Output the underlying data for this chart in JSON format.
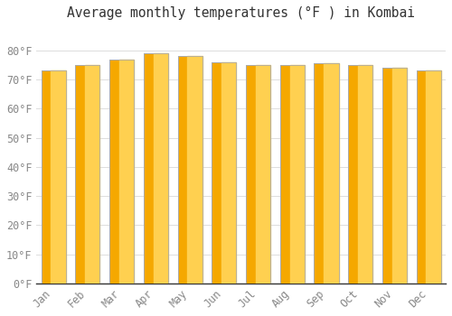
{
  "title": "Average monthly temperatures (°F ) in Kombai",
  "months": [
    "Jan",
    "Feb",
    "Mar",
    "Apr",
    "May",
    "Jun",
    "Jul",
    "Aug",
    "Sep",
    "Oct",
    "Nov",
    "Dec"
  ],
  "values": [
    73,
    75,
    77,
    79,
    78,
    76,
    75,
    75,
    75.5,
    75,
    74,
    73
  ],
  "ylim": [
    0,
    88
  ],
  "yticks": [
    0,
    10,
    20,
    30,
    40,
    50,
    60,
    70,
    80
  ],
  "ytick_labels": [
    "0°F",
    "10°F",
    "20°F",
    "30°F",
    "40°F",
    "50°F",
    "60°F",
    "70°F",
    "80°F"
  ],
  "bar_color_left": "#F5A800",
  "bar_color_right": "#FFD050",
  "bar_edge_color": "#AAAAAA",
  "background_color": "#FFFFFF",
  "grid_color": "#DDDDDD",
  "title_fontsize": 10.5,
  "tick_fontsize": 8.5,
  "font_family": "monospace",
  "bar_width": 0.72,
  "figsize": [
    5.0,
    3.5
  ],
  "dpi": 100
}
